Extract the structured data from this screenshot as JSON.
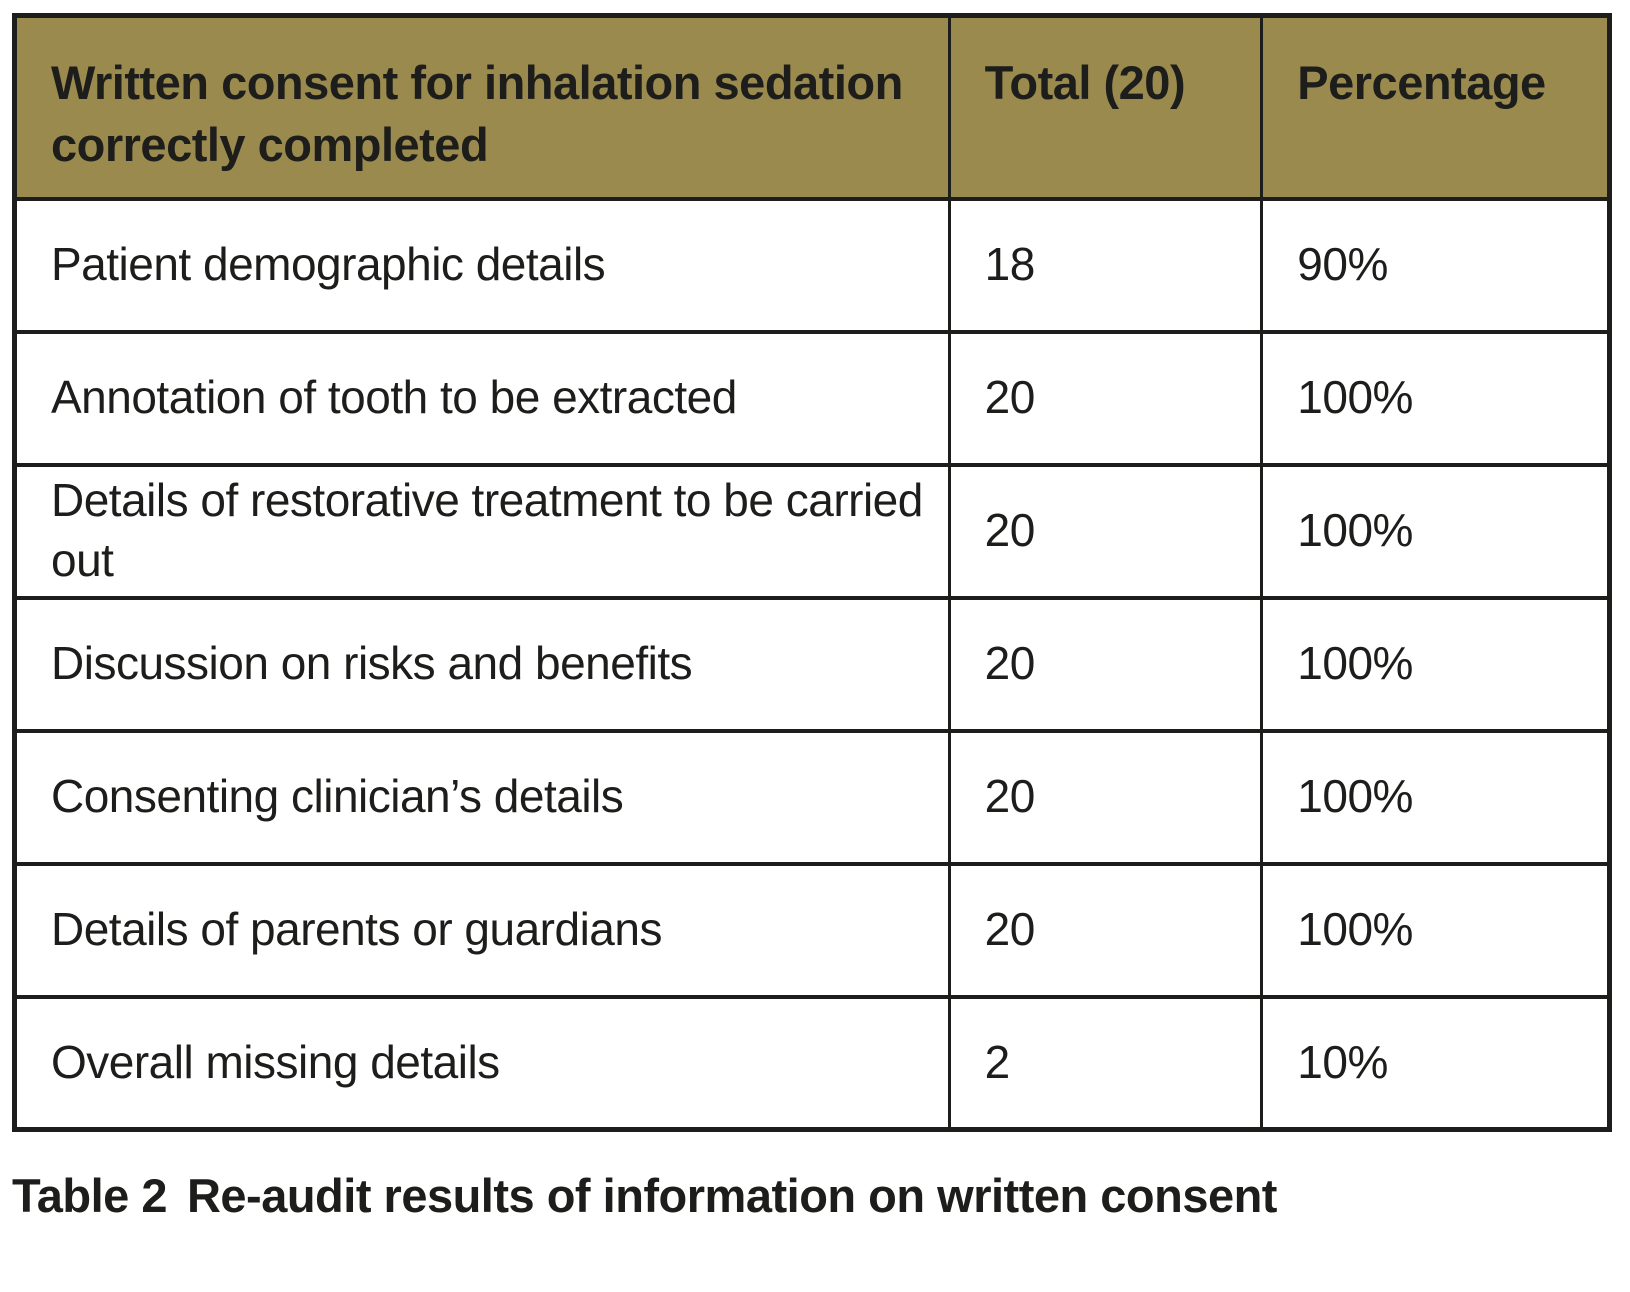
{
  "table": {
    "header": {
      "criteria": "Written consent for inhalation sedation correctly completed",
      "total": "Total (20)",
      "percentage": "Percentage"
    },
    "rows": [
      [
        "Patient demographic details",
        "18",
        "90%"
      ],
      [
        "Annotation of tooth to be extracted",
        "20",
        "100%"
      ],
      [
        "Details of restorative treatment to be carried out",
        "20",
        "100%"
      ],
      [
        "Discussion on risks and benefits",
        "20",
        "100%"
      ],
      [
        "Consenting clinician’s details",
        "20",
        "100%"
      ],
      [
        "Details of parents or guardians",
        "20",
        "100%"
      ],
      [
        "Overall missing details",
        "2",
        "10%"
      ]
    ],
    "caption_label": "Table 2",
    "caption_text": "Re-audit results of information on written consent"
  },
  "colors": {
    "header_background": "#9a8a4e",
    "border": "#1d1d1b",
    "text": "#1d1d1b",
    "row_background": "#ffffff"
  }
}
